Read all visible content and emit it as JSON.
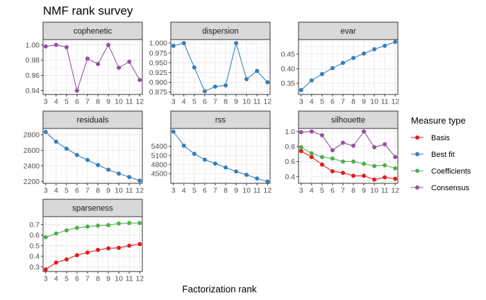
{
  "chart_data": {
    "type": "line",
    "title": "NMF rank survey",
    "xlabel": "Factorization rank",
    "ylabel": "",
    "x": [
      3,
      4,
      5,
      6,
      7,
      8,
      9,
      10,
      11,
      12
    ],
    "x_tick_labels": [
      "3",
      "4",
      "5",
      "6",
      "7",
      "8",
      "9",
      "10",
      "11",
      "12"
    ],
    "grid": true,
    "legend": {
      "title": "Measure type",
      "position": "right",
      "entries": [
        {
          "name": "Basis",
          "color": "#e41a1c"
        },
        {
          "name": "Best fit",
          "color": "#377eb8"
        },
        {
          "name": "Coefficients",
          "color": "#4daf4a"
        },
        {
          "name": "Consensus",
          "color": "#984ea3"
        }
      ]
    },
    "panels": [
      {
        "name": "cophenetic",
        "ylim": [
          0.935,
          1.007
        ],
        "yticks": [
          0.94,
          0.96,
          0.98,
          1.0
        ],
        "ytick_labels": [
          "0.94",
          "0.96",
          "0.98",
          "1.00"
        ],
        "series": [
          {
            "name": "Consensus",
            "values": [
              0.998,
              1.0,
              0.997,
              0.94,
              0.982,
              0.975,
              1.0,
              0.97,
              0.978,
              0.954
            ]
          }
        ]
      },
      {
        "name": "dispersion",
        "ylim": [
          0.869,
          1.009
        ],
        "yticks": [
          0.875,
          0.9,
          0.925,
          0.95,
          0.975,
          1.0
        ],
        "ytick_labels": [
          "0.875",
          "0.900",
          "0.925",
          "0.950",
          "0.975",
          "1.000"
        ],
        "series": [
          {
            "name": "Best fit",
            "values": [
              0.993,
              1.0,
              0.938,
              0.877,
              0.889,
              0.892,
              1.0,
              0.908,
              0.929,
              0.9
            ]
          }
        ]
      },
      {
        "name": "evar",
        "ylim": [
          0.312,
          0.5
        ],
        "yticks": [
          0.35,
          0.4,
          0.45
        ],
        "ytick_labels": [
          "0.35",
          "0.40",
          "0.45"
        ],
        "series": [
          {
            "name": "Best fit",
            "values": [
              0.327,
              0.36,
              0.382,
              0.402,
              0.42,
              0.437,
              0.452,
              0.467,
              0.479,
              0.492
            ]
          }
        ]
      },
      {
        "name": "residuals",
        "ylim": [
          2175,
          2880
        ],
        "yticks": [
          2200,
          2400,
          2600,
          2800
        ],
        "ytick_labels": [
          "2200",
          "2400",
          "2600",
          "2800"
        ],
        "series": [
          {
            "name": "Best fit",
            "values": [
              2835,
              2710,
              2620,
              2540,
              2475,
              2410,
              2350,
              2300,
              2255,
              2210
            ]
          }
        ]
      },
      {
        "name": "rss",
        "ylim": [
          4180,
          5985
        ],
        "yticks": [
          4500,
          4800,
          5100,
          5400
        ],
        "ytick_labels": [
          "4500",
          "4800",
          "5100",
          "5400"
        ],
        "series": [
          {
            "name": "Best fit",
            "values": [
              5880,
              5420,
              5150,
              4960,
              4830,
              4700,
              4570,
              4460,
              4340,
              4240
            ]
          }
        ]
      },
      {
        "name": "silhouette",
        "ylim": [
          0.31,
          1.04
        ],
        "yticks": [
          0.4,
          0.6,
          0.8,
          1.0
        ],
        "ytick_labels": [
          "0.4",
          "0.6",
          "0.8",
          "1.0"
        ],
        "series": [
          {
            "name": "Basis",
            "values": [
              0.74,
              0.66,
              0.56,
              0.47,
              0.45,
              0.41,
              0.41,
              0.36,
              0.39,
              0.37
            ]
          },
          {
            "name": "Coefficients",
            "values": [
              0.79,
              0.71,
              0.66,
              0.64,
              0.6,
              0.6,
              0.57,
              0.54,
              0.55,
              0.51
            ]
          },
          {
            "name": "Consensus",
            "values": [
              0.99,
              1.0,
              0.95,
              0.75,
              0.85,
              0.81,
              1.0,
              0.79,
              0.83,
              0.66
            ]
          }
        ]
      },
      {
        "name": "sparseness",
        "ylim": [
          0.255,
          0.775
        ],
        "yticks": [
          0.3,
          0.4,
          0.5,
          0.6,
          0.7
        ],
        "ytick_labels": [
          "0.3",
          "0.4",
          "0.5",
          "0.6",
          "0.7"
        ],
        "series": [
          {
            "name": "Basis",
            "values": [
              0.275,
              0.34,
              0.37,
              0.41,
              0.435,
              0.46,
              0.475,
              0.48,
              0.5,
              0.515
            ]
          },
          {
            "name": "Coefficients",
            "values": [
              0.58,
              0.615,
              0.645,
              0.67,
              0.68,
              0.69,
              0.695,
              0.71,
              0.715,
              0.715
            ]
          }
        ]
      }
    ]
  }
}
